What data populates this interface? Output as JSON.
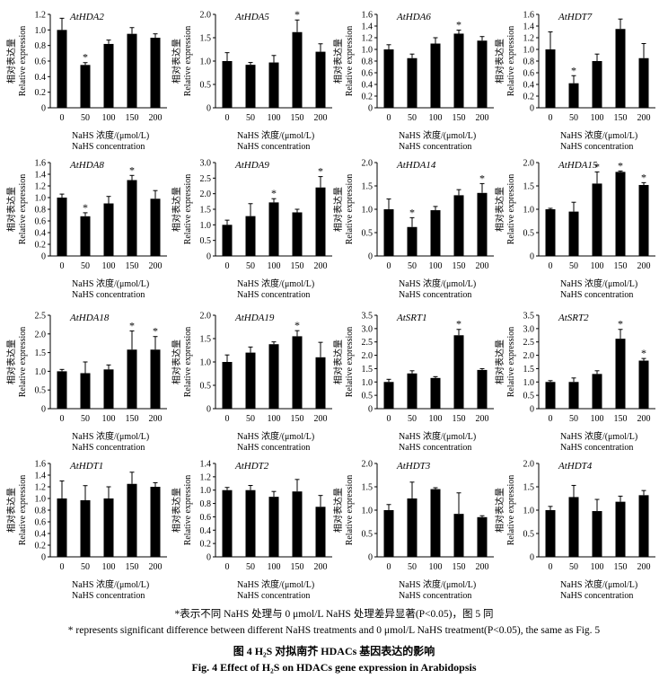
{
  "figure": {
    "note_cn": "*表示不同 NaHS 处理与 0 μmol/L NaHS 处理差异显著(P<0.05)，图 5 同",
    "note_en": "* represents significant difference between different NaHS treatments and 0 μmol/L NaHS treatment(P<0.05), the same as Fig. 5",
    "title_cn": "图 4  H₂S 对拟南芥 HDACs 基因表达的影响",
    "title_en": "Fig. 4  Effect of H₂S on HDACs gene expression in Arabidopsis"
  },
  "common": {
    "ylabel_cn": "相对表达量",
    "ylabel_en": "Relative expression",
    "xlabel_cn": "NaHS 浓度/(μmol/L)",
    "xlabel_en": "NaHS concentration",
    "categories": [
      "0",
      "50",
      "100",
      "150",
      "200"
    ],
    "bar_color": "#000000"
  },
  "chart_data": [
    {
      "type": "bar",
      "title": "AtHDA2",
      "categories": [
        "0",
        "50",
        "100",
        "150",
        "200"
      ],
      "values": [
        1.0,
        0.55,
        0.82,
        0.95,
        0.9
      ],
      "errors": [
        0.15,
        0.03,
        0.05,
        0.08,
        0.05
      ],
      "significant": [
        false,
        true,
        false,
        false,
        false
      ],
      "ylim": [
        0,
        1.2
      ],
      "yticks": [
        0,
        0.2,
        0.4,
        0.6,
        0.8,
        1.0,
        1.2
      ]
    },
    {
      "type": "bar",
      "title": "AtHDA5",
      "categories": [
        "0",
        "50",
        "100",
        "150",
        "200"
      ],
      "values": [
        1.0,
        0.92,
        0.97,
        1.62,
        1.2
      ],
      "errors": [
        0.18,
        0.05,
        0.15,
        0.26,
        0.17
      ],
      "significant": [
        false,
        false,
        false,
        true,
        false
      ],
      "ylim": [
        0,
        2.0
      ],
      "yticks": [
        0,
        0.5,
        1.0,
        1.5,
        2.0
      ]
    },
    {
      "type": "bar",
      "title": "AtHDA6",
      "categories": [
        "0",
        "50",
        "100",
        "150",
        "200"
      ],
      "values": [
        1.0,
        0.85,
        1.1,
        1.27,
        1.15
      ],
      "errors": [
        0.08,
        0.07,
        0.1,
        0.06,
        0.07
      ],
      "significant": [
        false,
        false,
        false,
        true,
        false
      ],
      "ylim": [
        0,
        1.6
      ],
      "yticks": [
        0,
        0.2,
        0.4,
        0.6,
        0.8,
        1.0,
        1.2,
        1.4,
        1.6
      ]
    },
    {
      "type": "bar",
      "title": "AtHDT7",
      "categories": [
        "0",
        "50",
        "100",
        "150",
        "200"
      ],
      "values": [
        1.0,
        0.42,
        0.8,
        1.35,
        0.85
      ],
      "errors": [
        0.3,
        0.13,
        0.12,
        0.17,
        0.25
      ],
      "significant": [
        false,
        true,
        false,
        false,
        false
      ],
      "ylim": [
        0,
        1.6
      ],
      "yticks": [
        0,
        0.2,
        0.4,
        0.6,
        0.8,
        1.0,
        1.2,
        1.4,
        1.6
      ]
    },
    {
      "type": "bar",
      "title": "AtHDA8",
      "categories": [
        "0",
        "50",
        "100",
        "150",
        "200"
      ],
      "values": [
        1.0,
        0.68,
        0.9,
        1.3,
        0.98
      ],
      "errors": [
        0.06,
        0.06,
        0.12,
        0.08,
        0.14
      ],
      "significant": [
        false,
        true,
        false,
        true,
        false
      ],
      "ylim": [
        0,
        1.6
      ],
      "yticks": [
        0,
        0.2,
        0.4,
        0.6,
        0.8,
        1.0,
        1.2,
        1.4,
        1.6
      ]
    },
    {
      "type": "bar",
      "title": "AtHDA9",
      "categories": [
        "0",
        "50",
        "100",
        "150",
        "200"
      ],
      "values": [
        1.0,
        1.28,
        1.72,
        1.4,
        2.2
      ],
      "errors": [
        0.15,
        0.4,
        0.12,
        0.1,
        0.35
      ],
      "significant": [
        false,
        false,
        true,
        false,
        true
      ],
      "ylim": [
        0,
        3.0
      ],
      "yticks": [
        0,
        0.5,
        1.0,
        1.5,
        2.0,
        2.5,
        3.0
      ]
    },
    {
      "type": "bar",
      "title": "AtHDA14",
      "categories": [
        "0",
        "50",
        "100",
        "150",
        "200"
      ],
      "values": [
        1.0,
        0.62,
        0.98,
        1.3,
        1.35
      ],
      "errors": [
        0.22,
        0.2,
        0.08,
        0.12,
        0.2
      ],
      "significant": [
        false,
        true,
        false,
        false,
        true
      ],
      "ylim": [
        0,
        2.0
      ],
      "yticks": [
        0,
        0.5,
        1.0,
        1.5,
        2.0
      ]
    },
    {
      "type": "bar",
      "title": "AtHDA15",
      "categories": [
        "0",
        "50",
        "100",
        "150",
        "200"
      ],
      "values": [
        1.0,
        0.95,
        1.55,
        1.8,
        1.52
      ],
      "errors": [
        0.02,
        0.2,
        0.25,
        0.02,
        0.05
      ],
      "significant": [
        false,
        false,
        true,
        true,
        true
      ],
      "ylim": [
        0,
        2.0
      ],
      "yticks": [
        0,
        0.5,
        1.0,
        1.5,
        2.0
      ]
    },
    {
      "type": "bar",
      "title": "AtHDA18",
      "categories": [
        "0",
        "50",
        "100",
        "150",
        "200"
      ],
      "values": [
        1.0,
        0.95,
        1.05,
        1.58,
        1.58
      ],
      "errors": [
        0.05,
        0.3,
        0.12,
        0.5,
        0.35
      ],
      "significant": [
        false,
        false,
        false,
        true,
        true
      ],
      "ylim": [
        0,
        2.5
      ],
      "yticks": [
        0,
        0.5,
        1.0,
        1.5,
        2.0,
        2.5
      ]
    },
    {
      "type": "bar",
      "title": "AtHDA19",
      "categories": [
        "0",
        "50",
        "100",
        "150",
        "200"
      ],
      "values": [
        1.0,
        1.2,
        1.38,
        1.55,
        1.1
      ],
      "errors": [
        0.15,
        0.12,
        0.05,
        0.12,
        0.32
      ],
      "significant": [
        false,
        false,
        false,
        true,
        false
      ],
      "ylim": [
        0,
        2.0
      ],
      "yticks": [
        0,
        0.5,
        1.0,
        1.5,
        2.0
      ]
    },
    {
      "type": "bar",
      "title": "AtSRT1",
      "categories": [
        "0",
        "50",
        "100",
        "150",
        "200"
      ],
      "values": [
        1.0,
        1.32,
        1.15,
        2.75,
        1.45
      ],
      "errors": [
        0.1,
        0.1,
        0.05,
        0.22,
        0.05
      ],
      "significant": [
        false,
        false,
        false,
        true,
        false
      ],
      "ylim": [
        0,
        3.5
      ],
      "yticks": [
        0,
        0.5,
        1.0,
        1.5,
        2.0,
        2.5,
        3.0,
        3.5
      ]
    },
    {
      "type": "bar",
      "title": "AtSRT2",
      "categories": [
        "0",
        "50",
        "100",
        "150",
        "200"
      ],
      "values": [
        1.0,
        1.0,
        1.3,
        2.62,
        1.8
      ],
      "errors": [
        0.05,
        0.15,
        0.12,
        0.35,
        0.08
      ],
      "significant": [
        false,
        false,
        false,
        true,
        true
      ],
      "ylim": [
        0,
        3.5
      ],
      "yticks": [
        0,
        0.5,
        1.0,
        1.5,
        2.0,
        2.5,
        3.0,
        3.5
      ]
    },
    {
      "type": "bar",
      "title": "AtHDT1",
      "categories": [
        "0",
        "50",
        "100",
        "150",
        "200"
      ],
      "values": [
        1.0,
        0.97,
        1.0,
        1.25,
        1.2
      ],
      "errors": [
        0.3,
        0.25,
        0.2,
        0.2,
        0.07
      ],
      "significant": [
        false,
        false,
        false,
        false,
        false
      ],
      "ylim": [
        0,
        1.6
      ],
      "yticks": [
        0,
        0.2,
        0.4,
        0.6,
        0.8,
        1.0,
        1.2,
        1.4,
        1.6
      ]
    },
    {
      "type": "bar",
      "title": "AtHDT2",
      "categories": [
        "0",
        "50",
        "100",
        "150",
        "200"
      ],
      "values": [
        1.0,
        1.0,
        0.9,
        0.98,
        0.75
      ],
      "errors": [
        0.04,
        0.07,
        0.08,
        0.18,
        0.17
      ],
      "significant": [
        false,
        false,
        false,
        false,
        false
      ],
      "ylim": [
        0,
        1.4
      ],
      "yticks": [
        0,
        0.2,
        0.4,
        0.6,
        0.8,
        1.0,
        1.2,
        1.4
      ]
    },
    {
      "type": "bar",
      "title": "AtHDT3",
      "categories": [
        "0",
        "50",
        "100",
        "150",
        "200"
      ],
      "values": [
        1.0,
        1.25,
        1.45,
        0.92,
        0.85
      ],
      "errors": [
        0.12,
        0.35,
        0.03,
        0.45,
        0.03
      ],
      "significant": [
        false,
        false,
        false,
        false,
        false
      ],
      "ylim": [
        0,
        2.0
      ],
      "yticks": [
        0,
        0.5,
        1.0,
        1.5,
        2.0
      ]
    },
    {
      "type": "bar",
      "title": "AtHDT4",
      "categories": [
        "0",
        "50",
        "100",
        "150",
        "200"
      ],
      "values": [
        1.0,
        1.28,
        0.98,
        1.18,
        1.32
      ],
      "errors": [
        0.08,
        0.25,
        0.25,
        0.12,
        0.1
      ],
      "significant": [
        false,
        false,
        false,
        false,
        false
      ],
      "ylim": [
        0,
        2.0
      ],
      "yticks": [
        0,
        0.5,
        1.0,
        1.5,
        2.0
      ]
    }
  ]
}
